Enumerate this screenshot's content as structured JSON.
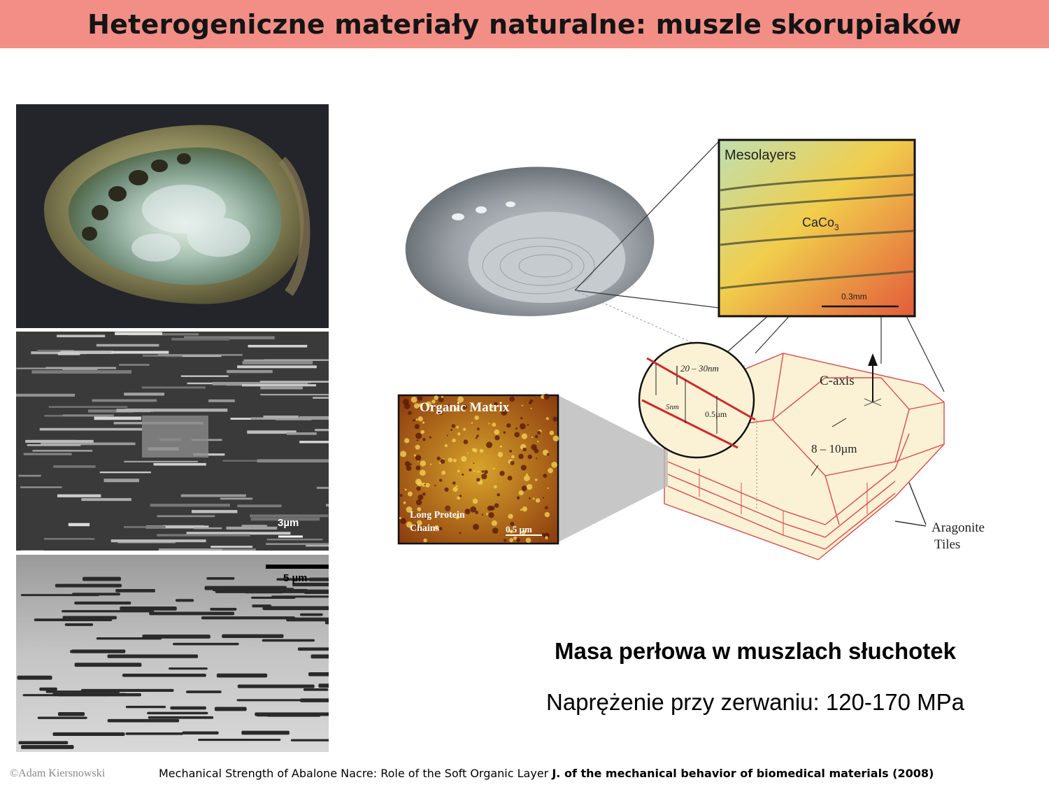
{
  "slide": {
    "title": "Heterogeniczne materiały naturalne: muszle skorupiaków"
  },
  "photos": {
    "sem_scale": "3µm",
    "tem_scale": "5 µm"
  },
  "diagram": {
    "mesolayers": "Mesolayers",
    "caco_main": "CaCo",
    "caco_sub": "3",
    "optical_scale": "0.3mm",
    "organic_matrix": "Organic Matrix",
    "long_protein_line1": "Long Protein",
    "long_protein_line2": "Chains",
    "afm_scale": "0.5 µm",
    "thickness_label": "20 – 30nm",
    "gap_label": "5nm",
    "tile_thickness": "0.5µm",
    "c_axis": "C-axis",
    "tile_size": "8 – 10µm",
    "aragonite_line1": "Aragonite",
    "aragonite_line2": "Tiles"
  },
  "caption": {
    "title": "Masa perłowa w muszlach słuchotek",
    "subtitle": "Naprężenie przy zerwaniu: 120-170 MPa"
  },
  "footer": {
    "copyright": "©Adam Kiersnowski",
    "reference_plain": "Mechanical Strength of Abalone Nacre: Role of the Soft Organic Layer",
    "reference_bold": "J. of the mechanical behavior of biomedical materials (2008)"
  },
  "colors": {
    "title_bar": "#f28e86",
    "tile_outline": "#e0484a",
    "tile_fill": "#fbf2d6"
  }
}
